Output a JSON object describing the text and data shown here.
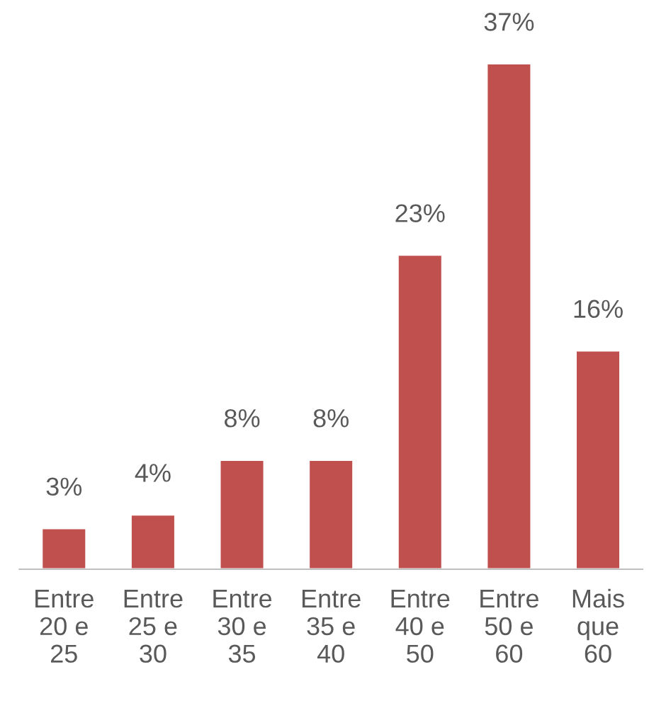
{
  "chart_data": {
    "type": "bar",
    "categories": [
      "Entre\n20 e\n25",
      "Entre\n25 e\n30",
      "Entre\n30 e\n35",
      "Entre\n35 e\n40",
      "Entre\n40 e\n50",
      "Entre\n50 e\n60",
      "Mais\nque\n60"
    ],
    "values": [
      3,
      4,
      8,
      8,
      23,
      37,
      16
    ],
    "value_labels": [
      "3%",
      "4%",
      "8%",
      "8%",
      "23%",
      "37%",
      "16%"
    ],
    "color": "#c0504d"
  }
}
